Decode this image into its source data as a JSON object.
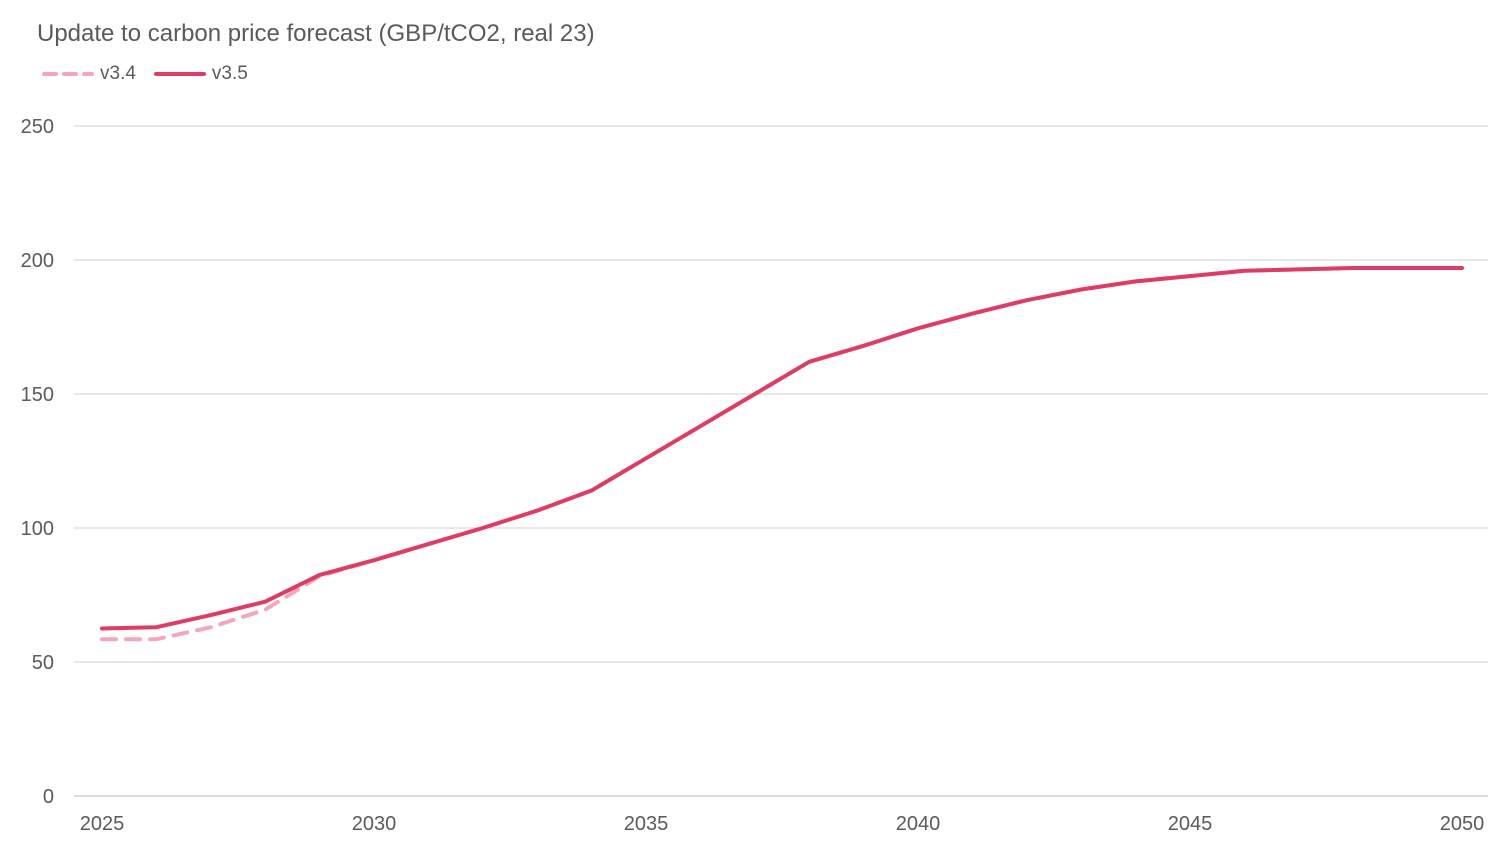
{
  "chart_data": {
    "type": "line",
    "title": "Update to carbon price forecast (GBP/tCO2, real 23)",
    "xlabel": "",
    "ylabel": "",
    "ylim": [
      0,
      250
    ],
    "xlim": [
      2025,
      2050
    ],
    "yticks": [
      0,
      50,
      100,
      150,
      200,
      250
    ],
    "xticks": [
      2025,
      2030,
      2035,
      2040,
      2045,
      2050
    ],
    "grid": true,
    "legend_position": "top-left",
    "x": [
      2025,
      2026,
      2027,
      2028,
      2029,
      2030,
      2031,
      2032,
      2033,
      2034,
      2035,
      2036,
      2037,
      2038,
      2039,
      2040,
      2041,
      2042,
      2043,
      2044,
      2045,
      2046,
      2047,
      2048,
      2049,
      2050
    ],
    "series": [
      {
        "name": "v3.4",
        "style": "dashed",
        "color": "#f2a7bc",
        "values": [
          58.5,
          58.5,
          63,
          69.5,
          82,
          88,
          94,
          100,
          106.5,
          114,
          126,
          138,
          150,
          162,
          168,
          174.5,
          180,
          185,
          189,
          192,
          194,
          196,
          196.5,
          197,
          197,
          197
        ]
      },
      {
        "name": "v3.5",
        "style": "solid",
        "color": "#de3d63",
        "values": [
          62.5,
          63,
          67.5,
          72.5,
          82.5,
          88,
          94,
          100,
          106.5,
          114,
          126,
          138,
          150,
          162,
          168,
          174.5,
          180,
          185,
          189,
          192,
          194,
          196,
          196.5,
          197,
          197,
          197
        ]
      }
    ]
  }
}
